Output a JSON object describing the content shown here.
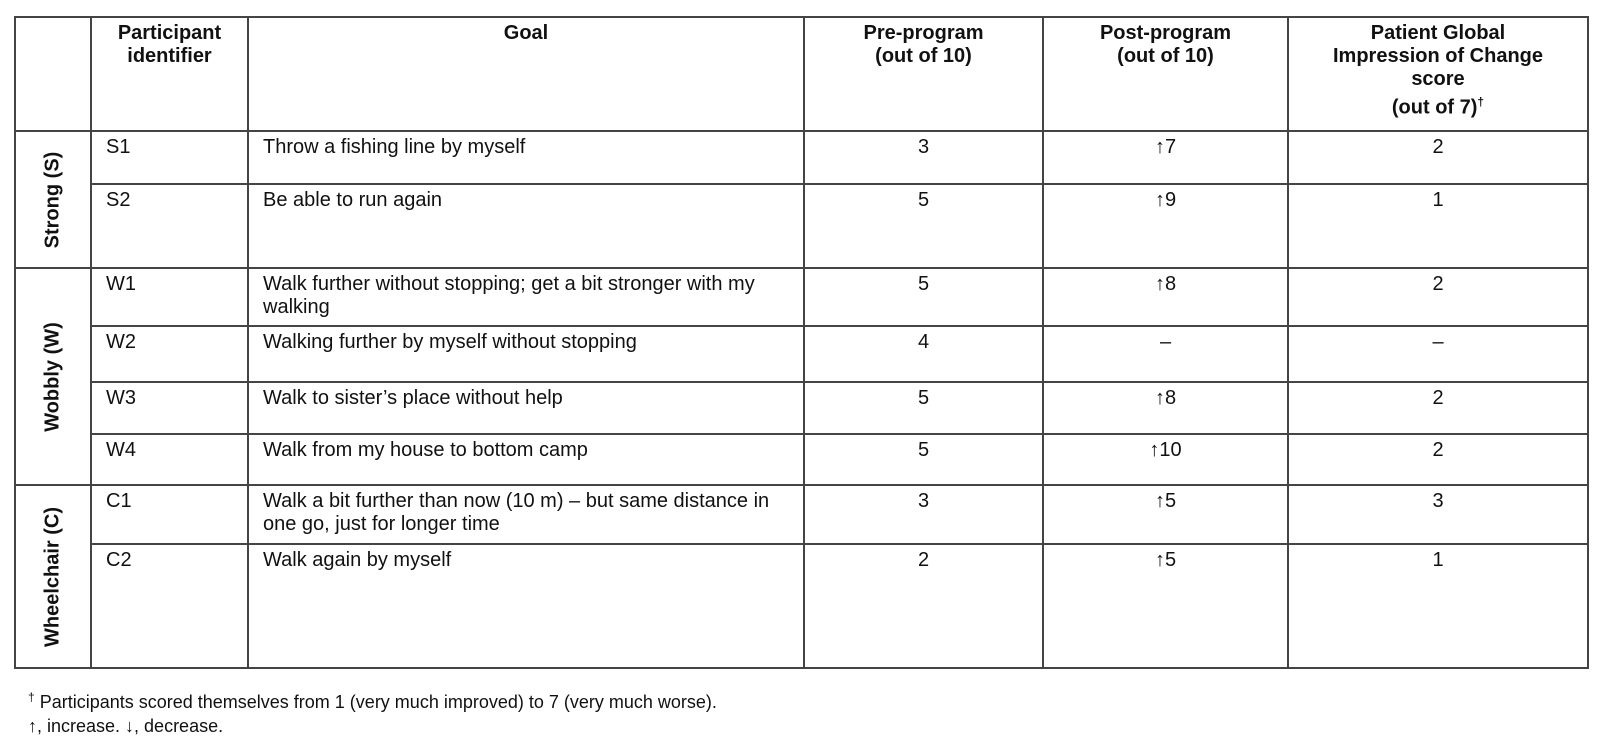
{
  "table": {
    "headers": [
      "",
      "Participant identifier",
      "Goal",
      "Pre-program (out of 10)",
      "Post-program (out of 10)",
      "Patient Global Impression of Change score (out of 7)"
    ],
    "header_lines": {
      "participant": [
        "Participant",
        "identifier"
      ],
      "pre": [
        "Pre-program",
        "(out of 10)"
      ],
      "post": [
        "Post-program",
        "(out of 10)"
      ],
      "pgic": [
        "Patient Global",
        "Impression of Change",
        "score",
        "(out of 7)"
      ],
      "pgic_mark": "†"
    },
    "groups": [
      {
        "label": "Strong (S)",
        "rows": [
          {
            "id": "S1",
            "goal": "Throw a fishing line by myself",
            "pre": "3",
            "post": "↑7",
            "pgic": "2"
          },
          {
            "id": "S2",
            "goal": "Be able to run again",
            "pre": "5",
            "post": "↑9",
            "pgic": "1"
          }
        ]
      },
      {
        "label": "Wobbly (W)",
        "rows": [
          {
            "id": "W1",
            "goal": "Walk further without stopping; get a bit stronger with my walking",
            "pre": "5",
            "post": "↑8",
            "pgic": "2"
          },
          {
            "id": "W2",
            "goal": "Walking further by myself without stopping",
            "pre": "4",
            "post": "–",
            "pgic": "–"
          },
          {
            "id": "W3",
            "goal": "Walk to sister’s place without help",
            "pre": "5",
            "post": "↑8",
            "pgic": "2"
          },
          {
            "id": "W4",
            "goal": "Walk from my house to bottom camp",
            "pre": "5",
            "post": "↑10",
            "pgic": "2"
          }
        ]
      },
      {
        "label": "Wheelchair (C)",
        "rows": [
          {
            "id": "C1",
            "goal": "Walk a bit further than now (10 m) – but same distance in one go, just for longer time",
            "pre": "3",
            "post": "↑5",
            "pgic": "3"
          },
          {
            "id": "C2",
            "goal": "Walk again by myself",
            "pre": "2",
            "post": "↑5",
            "pgic": "1"
          }
        ]
      }
    ]
  },
  "footnotes": {
    "dagger_mark": "†",
    "dagger_text": " Participants scored themselves from 1 (very much improved) to 7 (very much worse).",
    "arrows": "↑, increase. ↓, decrease."
  }
}
